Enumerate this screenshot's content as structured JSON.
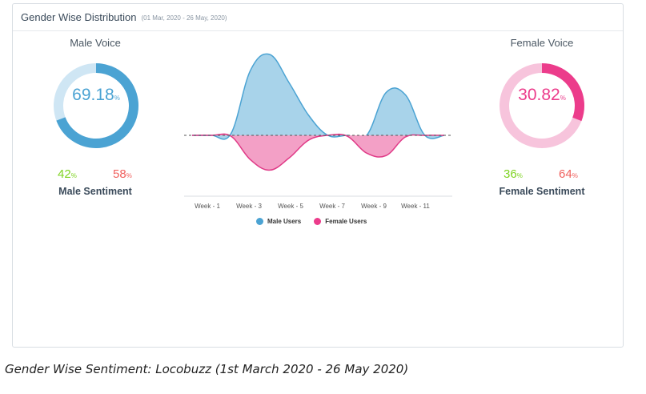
{
  "header": {
    "title": "Gender Wise Distribution",
    "date_range": "(01 Mar, 2020 - 26 May, 2020)"
  },
  "male": {
    "title": "Male Voice",
    "voice_value": "69.18",
    "voice_fraction": 0.6918,
    "pct_symbol": "%",
    "positive": "42",
    "negative": "58",
    "sentiment_label": "Male Sentiment",
    "colors": {
      "main": "#4ba3d3",
      "track": "#cfe6f4",
      "positive": "#7ed321",
      "negative": "#f0605d"
    }
  },
  "female": {
    "title": "Female Voice",
    "voice_value": "30.82",
    "voice_fraction": 0.3082,
    "pct_symbol": "%",
    "positive": "36",
    "negative": "64",
    "sentiment_label": "Female Sentiment",
    "colors": {
      "main": "#ec3c8b",
      "track": "#f7c4dc",
      "positive": "#7ed321",
      "negative": "#f0605d"
    }
  },
  "chart_data": {
    "type": "area",
    "title": "",
    "xlabel": "",
    "ylabel": "",
    "x": [
      0,
      1,
      2,
      3,
      4,
      5,
      6,
      7,
      8,
      9,
      10,
      11,
      12,
      13
    ],
    "categories": [
      "Week - 1",
      "Week - 3",
      "Week - 5",
      "Week - 7",
      "Week - 9",
      "Week - 11"
    ],
    "series": [
      {
        "name": "Male Users",
        "color": "#a8d3ea",
        "stroke": "#4ba3d3",
        "values": [
          0,
          0,
          2,
          80,
          100,
          65,
          25,
          0,
          0,
          0,
          53,
          50,
          0,
          0
        ]
      },
      {
        "name": "Female Users",
        "color": "#f3a0c6",
        "stroke": "#e03a87",
        "values": [
          0,
          0,
          -1,
          -30,
          -43,
          -28,
          -6,
          0,
          -1,
          -22,
          -25,
          -2,
          0,
          0
        ]
      }
    ],
    "ylim": [
      -50,
      100
    ],
    "grid": false,
    "legend": "bottom",
    "baseline": "dashed"
  }
}
